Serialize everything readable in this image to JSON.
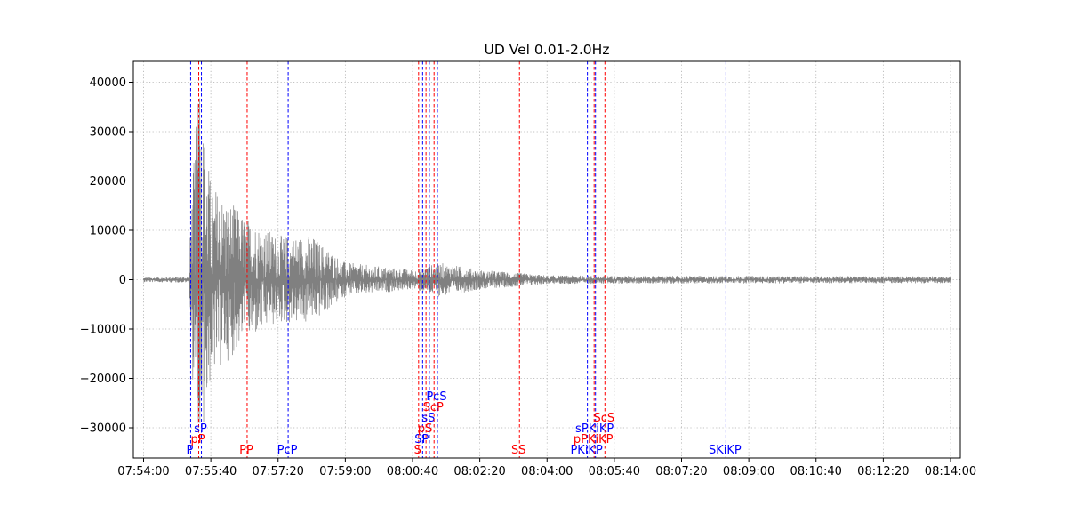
{
  "chart_data": {
    "type": "line",
    "title": "UD Vel 0.01-2.0Hz",
    "xlabel": "",
    "ylabel": "",
    "x_range_seconds": [
      0,
      1200
    ],
    "x_start_time": "07:54:00",
    "ylim": [
      -36000,
      44000
    ],
    "grid": true,
    "trace_color": "#808080",
    "x_ticks": [
      {
        "t": 0,
        "label": "07:54:00"
      },
      {
        "t": 100,
        "label": "07:55:40"
      },
      {
        "t": 200,
        "label": "07:57:20"
      },
      {
        "t": 300,
        "label": "07:59:00"
      },
      {
        "t": 400,
        "label": "08:00:40"
      },
      {
        "t": 500,
        "label": "08:02:20"
      },
      {
        "t": 600,
        "label": "08:04:00"
      },
      {
        "t": 700,
        "label": "08:05:40"
      },
      {
        "t": 800,
        "label": "08:07:20"
      },
      {
        "t": 900,
        "label": "08:09:00"
      },
      {
        "t": 1000,
        "label": "08:10:40"
      },
      {
        "t": 1100,
        "label": "08:12:20"
      },
      {
        "t": 1200,
        "label": "08:14:00"
      }
    ],
    "y_ticks": [
      {
        "v": 40000,
        "label": "40000"
      },
      {
        "v": 30000,
        "label": "30000"
      },
      {
        "v": 20000,
        "label": "20000"
      },
      {
        "v": 10000,
        "label": "10000"
      },
      {
        "v": 0,
        "label": "0"
      },
      {
        "v": -10000,
        "label": "−10000"
      },
      {
        "v": -20000,
        "label": "−20000"
      },
      {
        "v": -30000,
        "label": "−30000"
      }
    ],
    "envelope": [
      {
        "t": 0,
        "amp": 500
      },
      {
        "t": 68,
        "amp": 600
      },
      {
        "t": 70,
        "amp": 14000
      },
      {
        "t": 82,
        "amp": 40000
      },
      {
        "t": 100,
        "amp": 20000
      },
      {
        "t": 150,
        "amp": 13000
      },
      {
        "t": 200,
        "amp": 9000
      },
      {
        "t": 250,
        "amp": 9000
      },
      {
        "t": 300,
        "amp": 3500
      },
      {
        "t": 400,
        "amp": 2000
      },
      {
        "t": 440,
        "amp": 3500
      },
      {
        "t": 500,
        "amp": 2000
      },
      {
        "t": 600,
        "amp": 900
      },
      {
        "t": 700,
        "amp": 800
      },
      {
        "t": 1200,
        "amp": 700
      }
    ],
    "phases": [
      {
        "name": "P",
        "t": 70,
        "color": "#0000ff",
        "level": 0
      },
      {
        "name": "pP",
        "t": 82,
        "color": "#ff0000",
        "level": 1
      },
      {
        "name": "sP",
        "t": 86,
        "color": "#0000ff",
        "level": 2
      },
      {
        "name": "PP",
        "t": 154,
        "color": "#ff0000",
        "level": 0
      },
      {
        "name": "PcP",
        "t": 215,
        "color": "#0000ff",
        "level": 0
      },
      {
        "name": "S",
        "t": 409,
        "color": "#ff0000",
        "level": 0
      },
      {
        "name": "SP",
        "t": 415,
        "color": "#0000ff",
        "level": 1
      },
      {
        "name": "pS",
        "t": 420,
        "color": "#ff0000",
        "level": 2
      },
      {
        "name": "sS",
        "t": 425,
        "color": "#0000ff",
        "level": 3
      },
      {
        "name": "ScP",
        "t": 432,
        "color": "#ff0000",
        "level": 4
      },
      {
        "name": "PcS",
        "t": 437,
        "color": "#0000ff",
        "level": 5
      },
      {
        "name": "SS",
        "t": 559,
        "color": "#ff0000",
        "level": 0
      },
      {
        "name": "PKiKP",
        "t": 660,
        "color": "#0000ff",
        "level": 0
      },
      {
        "name": "pPKiKP",
        "t": 670,
        "color": "#ff0000",
        "level": 1
      },
      {
        "name": "sPKiKP",
        "t": 672,
        "color": "#0000ff",
        "level": 2
      },
      {
        "name": "ScS",
        "t": 686,
        "color": "#ff0000",
        "level": 3
      },
      {
        "name": "SKiKP",
        "t": 866,
        "color": "#0000ff",
        "level": 0
      }
    ]
  }
}
